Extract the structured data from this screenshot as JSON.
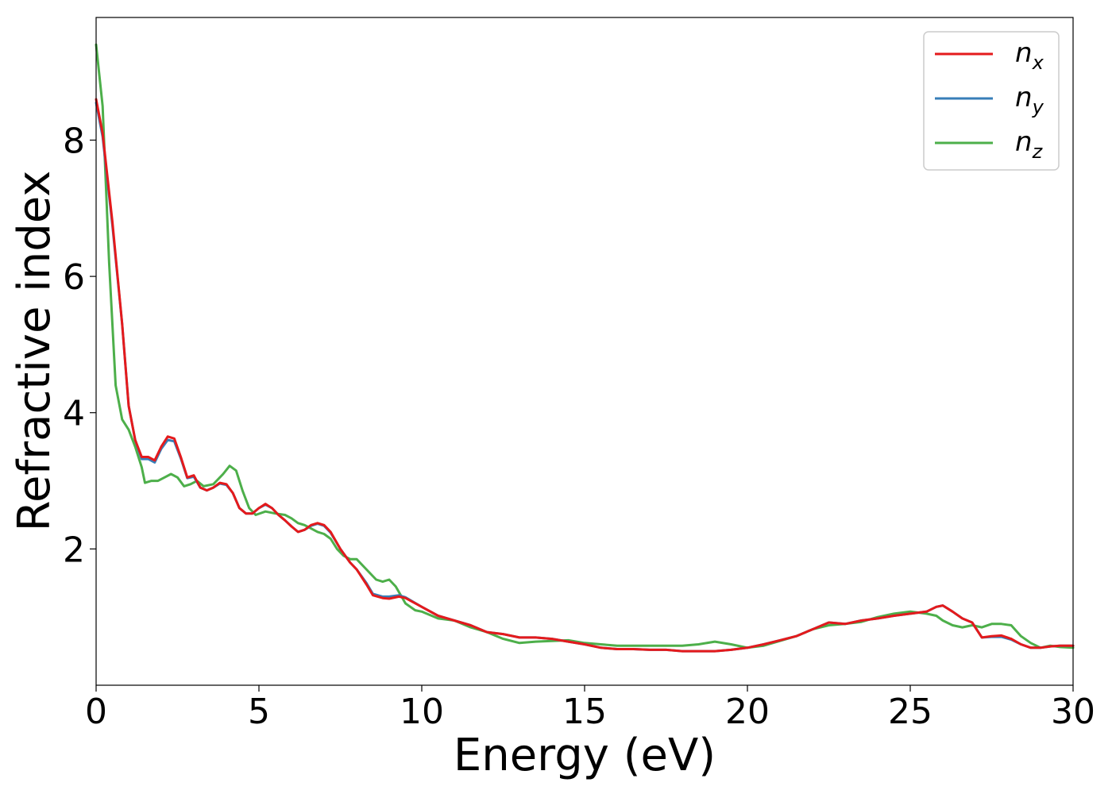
{
  "chart_data": {
    "type": "line",
    "title": "",
    "xlabel": "Energy (eV)",
    "ylabel": "Refractive index",
    "xlim": [
      0,
      30
    ],
    "ylim": [
      0.0,
      9.8
    ],
    "xticks": [
      0,
      5,
      10,
      15,
      20,
      25,
      30
    ],
    "yticks": [
      2,
      4,
      6,
      8
    ],
    "grid": false,
    "legend_position": "top-right",
    "series": [
      {
        "name": "n_x",
        "label_main": "n",
        "label_sub": "x",
        "color": "#e41a1c",
        "x": [
          0,
          0.2,
          0.5,
          0.8,
          1.0,
          1.2,
          1.4,
          1.6,
          1.8,
          2.0,
          2.2,
          2.4,
          2.6,
          2.8,
          3.0,
          3.2,
          3.4,
          3.6,
          3.8,
          4.0,
          4.2,
          4.4,
          4.6,
          4.8,
          5.0,
          5.2,
          5.4,
          5.6,
          5.8,
          6.0,
          6.2,
          6.4,
          6.6,
          6.8,
          7.0,
          7.2,
          7.5,
          7.8,
          8.0,
          8.3,
          8.5,
          8.8,
          9.0,
          9.3,
          9.5,
          10.0,
          10.5,
          11.0,
          11.5,
          12.0,
          12.5,
          13.0,
          13.5,
          14.0,
          14.5,
          15.0,
          15.5,
          16.0,
          16.5,
          17.0,
          17.5,
          18.0,
          18.5,
          19.0,
          19.5,
          20.0,
          20.5,
          21.0,
          21.5,
          22.0,
          22.5,
          23.0,
          23.5,
          24.0,
          24.5,
          25.0,
          25.5,
          25.8,
          26.0,
          26.3,
          26.6,
          26.9,
          27.2,
          27.5,
          27.8,
          28.1,
          28.4,
          28.7,
          29.0,
          29.3,
          29.6,
          30.0
        ],
        "y": [
          8.6,
          8.1,
          6.8,
          5.3,
          4.1,
          3.6,
          3.35,
          3.35,
          3.3,
          3.5,
          3.65,
          3.62,
          3.35,
          3.05,
          3.08,
          2.9,
          2.86,
          2.9,
          2.97,
          2.95,
          2.82,
          2.6,
          2.52,
          2.52,
          2.6,
          2.66,
          2.6,
          2.5,
          2.42,
          2.33,
          2.25,
          2.28,
          2.35,
          2.38,
          2.35,
          2.25,
          2.0,
          1.8,
          1.7,
          1.48,
          1.32,
          1.28,
          1.27,
          1.3,
          1.28,
          1.15,
          1.02,
          0.95,
          0.88,
          0.78,
          0.75,
          0.7,
          0.7,
          0.68,
          0.64,
          0.6,
          0.55,
          0.53,
          0.53,
          0.52,
          0.52,
          0.5,
          0.5,
          0.5,
          0.52,
          0.55,
          0.6,
          0.66,
          0.72,
          0.82,
          0.92,
          0.9,
          0.95,
          0.98,
          1.02,
          1.05,
          1.08,
          1.15,
          1.17,
          1.08,
          0.98,
          0.92,
          0.7,
          0.72,
          0.73,
          0.68,
          0.6,
          0.55,
          0.55,
          0.57,
          0.58,
          0.58
        ]
      },
      {
        "name": "n_y",
        "label_main": "n",
        "label_sub": "y",
        "color": "#377eb8",
        "x": [
          0,
          0.2,
          0.5,
          0.8,
          1.0,
          1.2,
          1.4,
          1.6,
          1.8,
          2.0,
          2.2,
          2.4,
          2.6,
          2.8,
          3.0,
          3.2,
          3.4,
          3.6,
          3.8,
          4.0,
          4.2,
          4.4,
          4.6,
          4.8,
          5.0,
          5.2,
          5.4,
          5.6,
          5.8,
          6.0,
          6.2,
          6.4,
          6.6,
          6.8,
          7.0,
          7.2,
          7.5,
          7.8,
          8.0,
          8.3,
          8.5,
          8.8,
          9.0,
          9.3,
          9.5,
          10.0,
          10.5,
          11.0,
          11.5,
          12.0,
          12.5,
          13.0,
          13.5,
          14.0,
          14.5,
          15.0,
          15.5,
          16.0,
          16.5,
          17.0,
          17.5,
          18.0,
          18.5,
          19.0,
          19.5,
          20.0,
          20.5,
          21.0,
          21.5,
          22.0,
          22.5,
          23.0,
          23.5,
          24.0,
          24.5,
          25.0,
          25.5,
          25.8,
          26.0,
          26.3,
          26.6,
          26.9,
          27.2,
          27.5,
          27.8,
          28.1,
          28.4,
          28.7,
          29.0,
          29.3,
          29.6,
          30.0
        ],
        "y": [
          8.55,
          8.05,
          6.75,
          5.3,
          4.1,
          3.6,
          3.32,
          3.32,
          3.27,
          3.47,
          3.6,
          3.58,
          3.33,
          3.04,
          3.06,
          2.9,
          2.86,
          2.9,
          2.96,
          2.94,
          2.82,
          2.6,
          2.52,
          2.52,
          2.6,
          2.65,
          2.6,
          2.5,
          2.42,
          2.33,
          2.25,
          2.28,
          2.34,
          2.37,
          2.34,
          2.24,
          2.0,
          1.8,
          1.7,
          1.5,
          1.34,
          1.3,
          1.3,
          1.32,
          1.29,
          1.15,
          1.02,
          0.95,
          0.88,
          0.78,
          0.75,
          0.7,
          0.7,
          0.68,
          0.64,
          0.6,
          0.55,
          0.53,
          0.53,
          0.52,
          0.52,
          0.5,
          0.5,
          0.5,
          0.52,
          0.55,
          0.6,
          0.66,
          0.72,
          0.82,
          0.92,
          0.9,
          0.95,
          0.98,
          1.02,
          1.05,
          1.08,
          1.15,
          1.17,
          1.08,
          0.98,
          0.92,
          0.7,
          0.71,
          0.71,
          0.67,
          0.6,
          0.55,
          0.55,
          0.57,
          0.58,
          0.58
        ]
      },
      {
        "name": "n_z",
        "label_main": "n",
        "label_sub": "z",
        "color": "#4daf4a",
        "x": [
          0,
          0.2,
          0.4,
          0.6,
          0.8,
          1.0,
          1.2,
          1.4,
          1.5,
          1.7,
          1.9,
          2.1,
          2.3,
          2.5,
          2.7,
          2.9,
          3.1,
          3.3,
          3.6,
          3.9,
          4.1,
          4.3,
          4.5,
          4.7,
          4.9,
          5.2,
          5.5,
          5.8,
          6.0,
          6.2,
          6.4,
          6.6,
          6.8,
          7.0,
          7.2,
          7.4,
          7.6,
          7.8,
          8.0,
          8.3,
          8.6,
          8.8,
          9.0,
          9.2,
          9.5,
          9.8,
          10.0,
          10.5,
          11.0,
          11.5,
          12.0,
          12.5,
          13.0,
          13.5,
          14.0,
          14.5,
          15.0,
          15.5,
          16.0,
          16.5,
          17.0,
          17.5,
          18.0,
          18.5,
          19.0,
          19.5,
          20.0,
          20.5,
          21.0,
          21.5,
          22.0,
          22.5,
          23.0,
          23.5,
          24.0,
          24.5,
          25.0,
          25.5,
          25.8,
          26.0,
          26.3,
          26.6,
          26.9,
          27.2,
          27.5,
          27.8,
          28.1,
          28.4,
          28.7,
          29.0,
          29.3,
          29.6,
          30.0
        ],
        "y": [
          9.4,
          8.5,
          6.2,
          4.4,
          3.9,
          3.75,
          3.5,
          3.2,
          2.97,
          3.0,
          3.0,
          3.05,
          3.1,
          3.05,
          2.92,
          2.95,
          3.0,
          2.92,
          2.95,
          3.1,
          3.22,
          3.15,
          2.85,
          2.6,
          2.5,
          2.55,
          2.52,
          2.5,
          2.45,
          2.38,
          2.35,
          2.3,
          2.25,
          2.22,
          2.15,
          2.0,
          1.9,
          1.85,
          1.85,
          1.7,
          1.55,
          1.52,
          1.55,
          1.45,
          1.2,
          1.1,
          1.08,
          0.98,
          0.95,
          0.85,
          0.78,
          0.68,
          0.62,
          0.64,
          0.65,
          0.66,
          0.62,
          0.6,
          0.58,
          0.58,
          0.58,
          0.58,
          0.58,
          0.6,
          0.64,
          0.6,
          0.55,
          0.58,
          0.65,
          0.72,
          0.82,
          0.88,
          0.9,
          0.93,
          1.0,
          1.05,
          1.08,
          1.05,
          1.02,
          0.95,
          0.88,
          0.85,
          0.88,
          0.85,
          0.9,
          0.9,
          0.88,
          0.72,
          0.62,
          0.55,
          0.58,
          0.56,
          0.55
        ]
      }
    ]
  }
}
